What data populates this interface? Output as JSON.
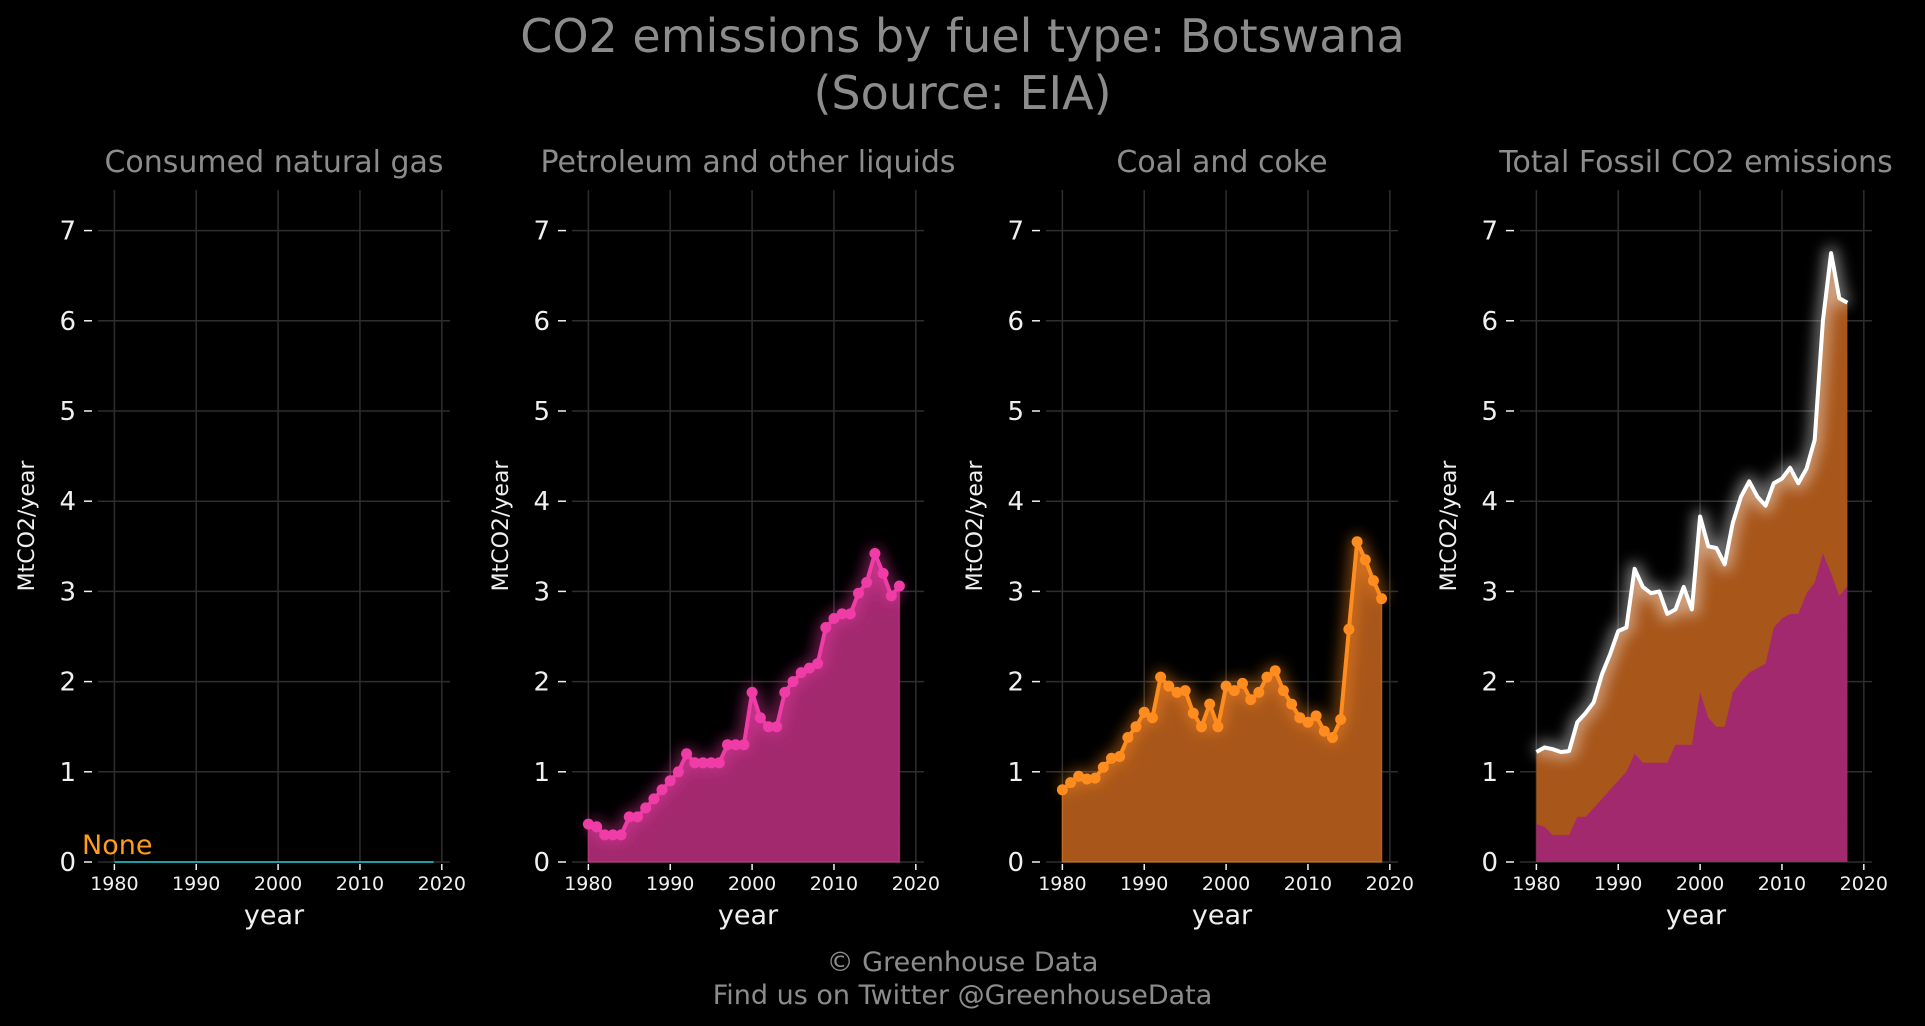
{
  "title_line1": "CO2 emissions by fuel type: Botswana",
  "title_line2": "(Source: EIA)",
  "footer_line1": "© Greenhouse Data",
  "footer_line2": "Find us on Twitter @GreenhouseData",
  "colors": {
    "background": "#000000",
    "grid": "#2e2e2e",
    "gas_line": "#1a9fa8",
    "gas_note": "#ff9c1a",
    "petroleum": "#f03ca6",
    "petroleum_fill": "#a3296f",
    "coal": "#ff8c1f",
    "coal_fill": "#a8561a",
    "total_line": "#ffffff"
  },
  "chart_data": [
    {
      "type": "line",
      "title": "Consumed natural gas",
      "xlabel": "year",
      "ylabel": "MtCO2/year",
      "xlim": [
        1978,
        2021
      ],
      "ylim": [
        0,
        7.45
      ],
      "xticks": [
        1980,
        1990,
        2000,
        2010,
        2020
      ],
      "yticks": [
        0,
        1,
        2,
        3,
        4,
        5,
        6,
        7
      ],
      "grid": true,
      "annotation": "None",
      "series": [
        {
          "x": [
            1980,
            2019
          ],
          "values": [
            0,
            0
          ]
        }
      ]
    },
    {
      "type": "area",
      "title": "Petroleum and other liquids",
      "xlabel": "year",
      "ylabel": "MtCO2/year",
      "xlim": [
        1978,
        2021
      ],
      "ylim": [
        0,
        7.45
      ],
      "xticks": [
        1980,
        1990,
        2000,
        2010,
        2020
      ],
      "yticks": [
        0,
        1,
        2,
        3,
        4,
        5,
        6,
        7
      ],
      "grid": true,
      "series": [
        {
          "x": [
            1980,
            1981,
            1982,
            1983,
            1984,
            1985,
            1986,
            1987,
            1988,
            1989,
            1990,
            1991,
            1992,
            1993,
            1994,
            1995,
            1996,
            1997,
            1998,
            1999,
            2000,
            2001,
            2002,
            2003,
            2004,
            2005,
            2006,
            2007,
            2008,
            2009,
            2010,
            2011,
            2012,
            2013,
            2014,
            2015,
            2016,
            2017,
            2018
          ],
          "values": [
            0.42,
            0.39,
            0.3,
            0.3,
            0.3,
            0.5,
            0.5,
            0.6,
            0.7,
            0.8,
            0.9,
            1.0,
            1.2,
            1.1,
            1.1,
            1.1,
            1.1,
            1.3,
            1.3,
            1.3,
            1.88,
            1.6,
            1.5,
            1.5,
            1.88,
            2.0,
            2.1,
            2.15,
            2.2,
            2.6,
            2.7,
            2.75,
            2.75,
            2.98,
            3.1,
            3.42,
            3.2,
            2.95,
            3.06
          ]
        }
      ]
    },
    {
      "type": "area",
      "title": "Coal and coke",
      "xlabel": "year",
      "ylabel": "MtCO2/year",
      "xlim": [
        1978,
        2021
      ],
      "ylim": [
        0,
        7.45
      ],
      "xticks": [
        1980,
        1990,
        2000,
        2010,
        2020
      ],
      "yticks": [
        0,
        1,
        2,
        3,
        4,
        5,
        6,
        7
      ],
      "grid": true,
      "series": [
        {
          "x": [
            1980,
            1981,
            1982,
            1983,
            1984,
            1985,
            1986,
            1987,
            1988,
            1989,
            1990,
            1991,
            1992,
            1993,
            1994,
            1995,
            1996,
            1997,
            1998,
            1999,
            2000,
            2001,
            2002,
            2003,
            2004,
            2005,
            2006,
            2007,
            2008,
            2009,
            2010,
            2011,
            2012,
            2013,
            2014,
            2015,
            2016,
            2017,
            2018,
            2019
          ],
          "values": [
            0.8,
            0.88,
            0.95,
            0.92,
            0.93,
            1.05,
            1.15,
            1.17,
            1.38,
            1.5,
            1.66,
            1.6,
            2.05,
            1.95,
            1.88,
            1.9,
            1.65,
            1.5,
            1.75,
            1.5,
            1.95,
            1.9,
            1.98,
            1.8,
            1.88,
            2.05,
            2.12,
            1.9,
            1.75,
            1.6,
            1.55,
            1.62,
            1.45,
            1.38,
            1.58,
            2.58,
            3.55,
            3.35,
            3.12,
            2.92
          ]
        }
      ]
    },
    {
      "type": "area",
      "title": "Total Fossil CO2 emissions",
      "xlabel": "year",
      "ylabel": "MtCO2/year",
      "xlim": [
        1978,
        2021
      ],
      "ylim": [
        0,
        7.45
      ],
      "xticks": [
        1980,
        1990,
        2000,
        2010,
        2020
      ],
      "yticks": [
        0,
        1,
        2,
        3,
        4,
        5,
        6,
        7
      ],
      "grid": true,
      "series": [
        {
          "x": [
            1980,
            1981,
            1982,
            1983,
            1984,
            1985,
            1986,
            1987,
            1988,
            1989,
            1990,
            1991,
            1992,
            1993,
            1994,
            1995,
            1996,
            1997,
            1998,
            1999,
            2000,
            2001,
            2002,
            2003,
            2004,
            2005,
            2006,
            2007,
            2008,
            2009,
            2010,
            2011,
            2012,
            2013,
            2014,
            2015,
            2016,
            2017,
            2018
          ],
          "values": [
            1.22,
            1.27,
            1.25,
            1.22,
            1.23,
            1.55,
            1.65,
            1.77,
            2.08,
            2.3,
            2.56,
            2.6,
            3.25,
            3.05,
            2.98,
            3.0,
            2.75,
            2.8,
            3.05,
            2.8,
            3.83,
            3.5,
            3.48,
            3.3,
            3.76,
            4.05,
            4.22,
            4.05,
            3.95,
            4.2,
            4.25,
            4.37,
            4.2,
            4.36,
            4.68,
            6.0,
            6.75,
            6.25,
            6.2
          ]
        }
      ]
    }
  ]
}
